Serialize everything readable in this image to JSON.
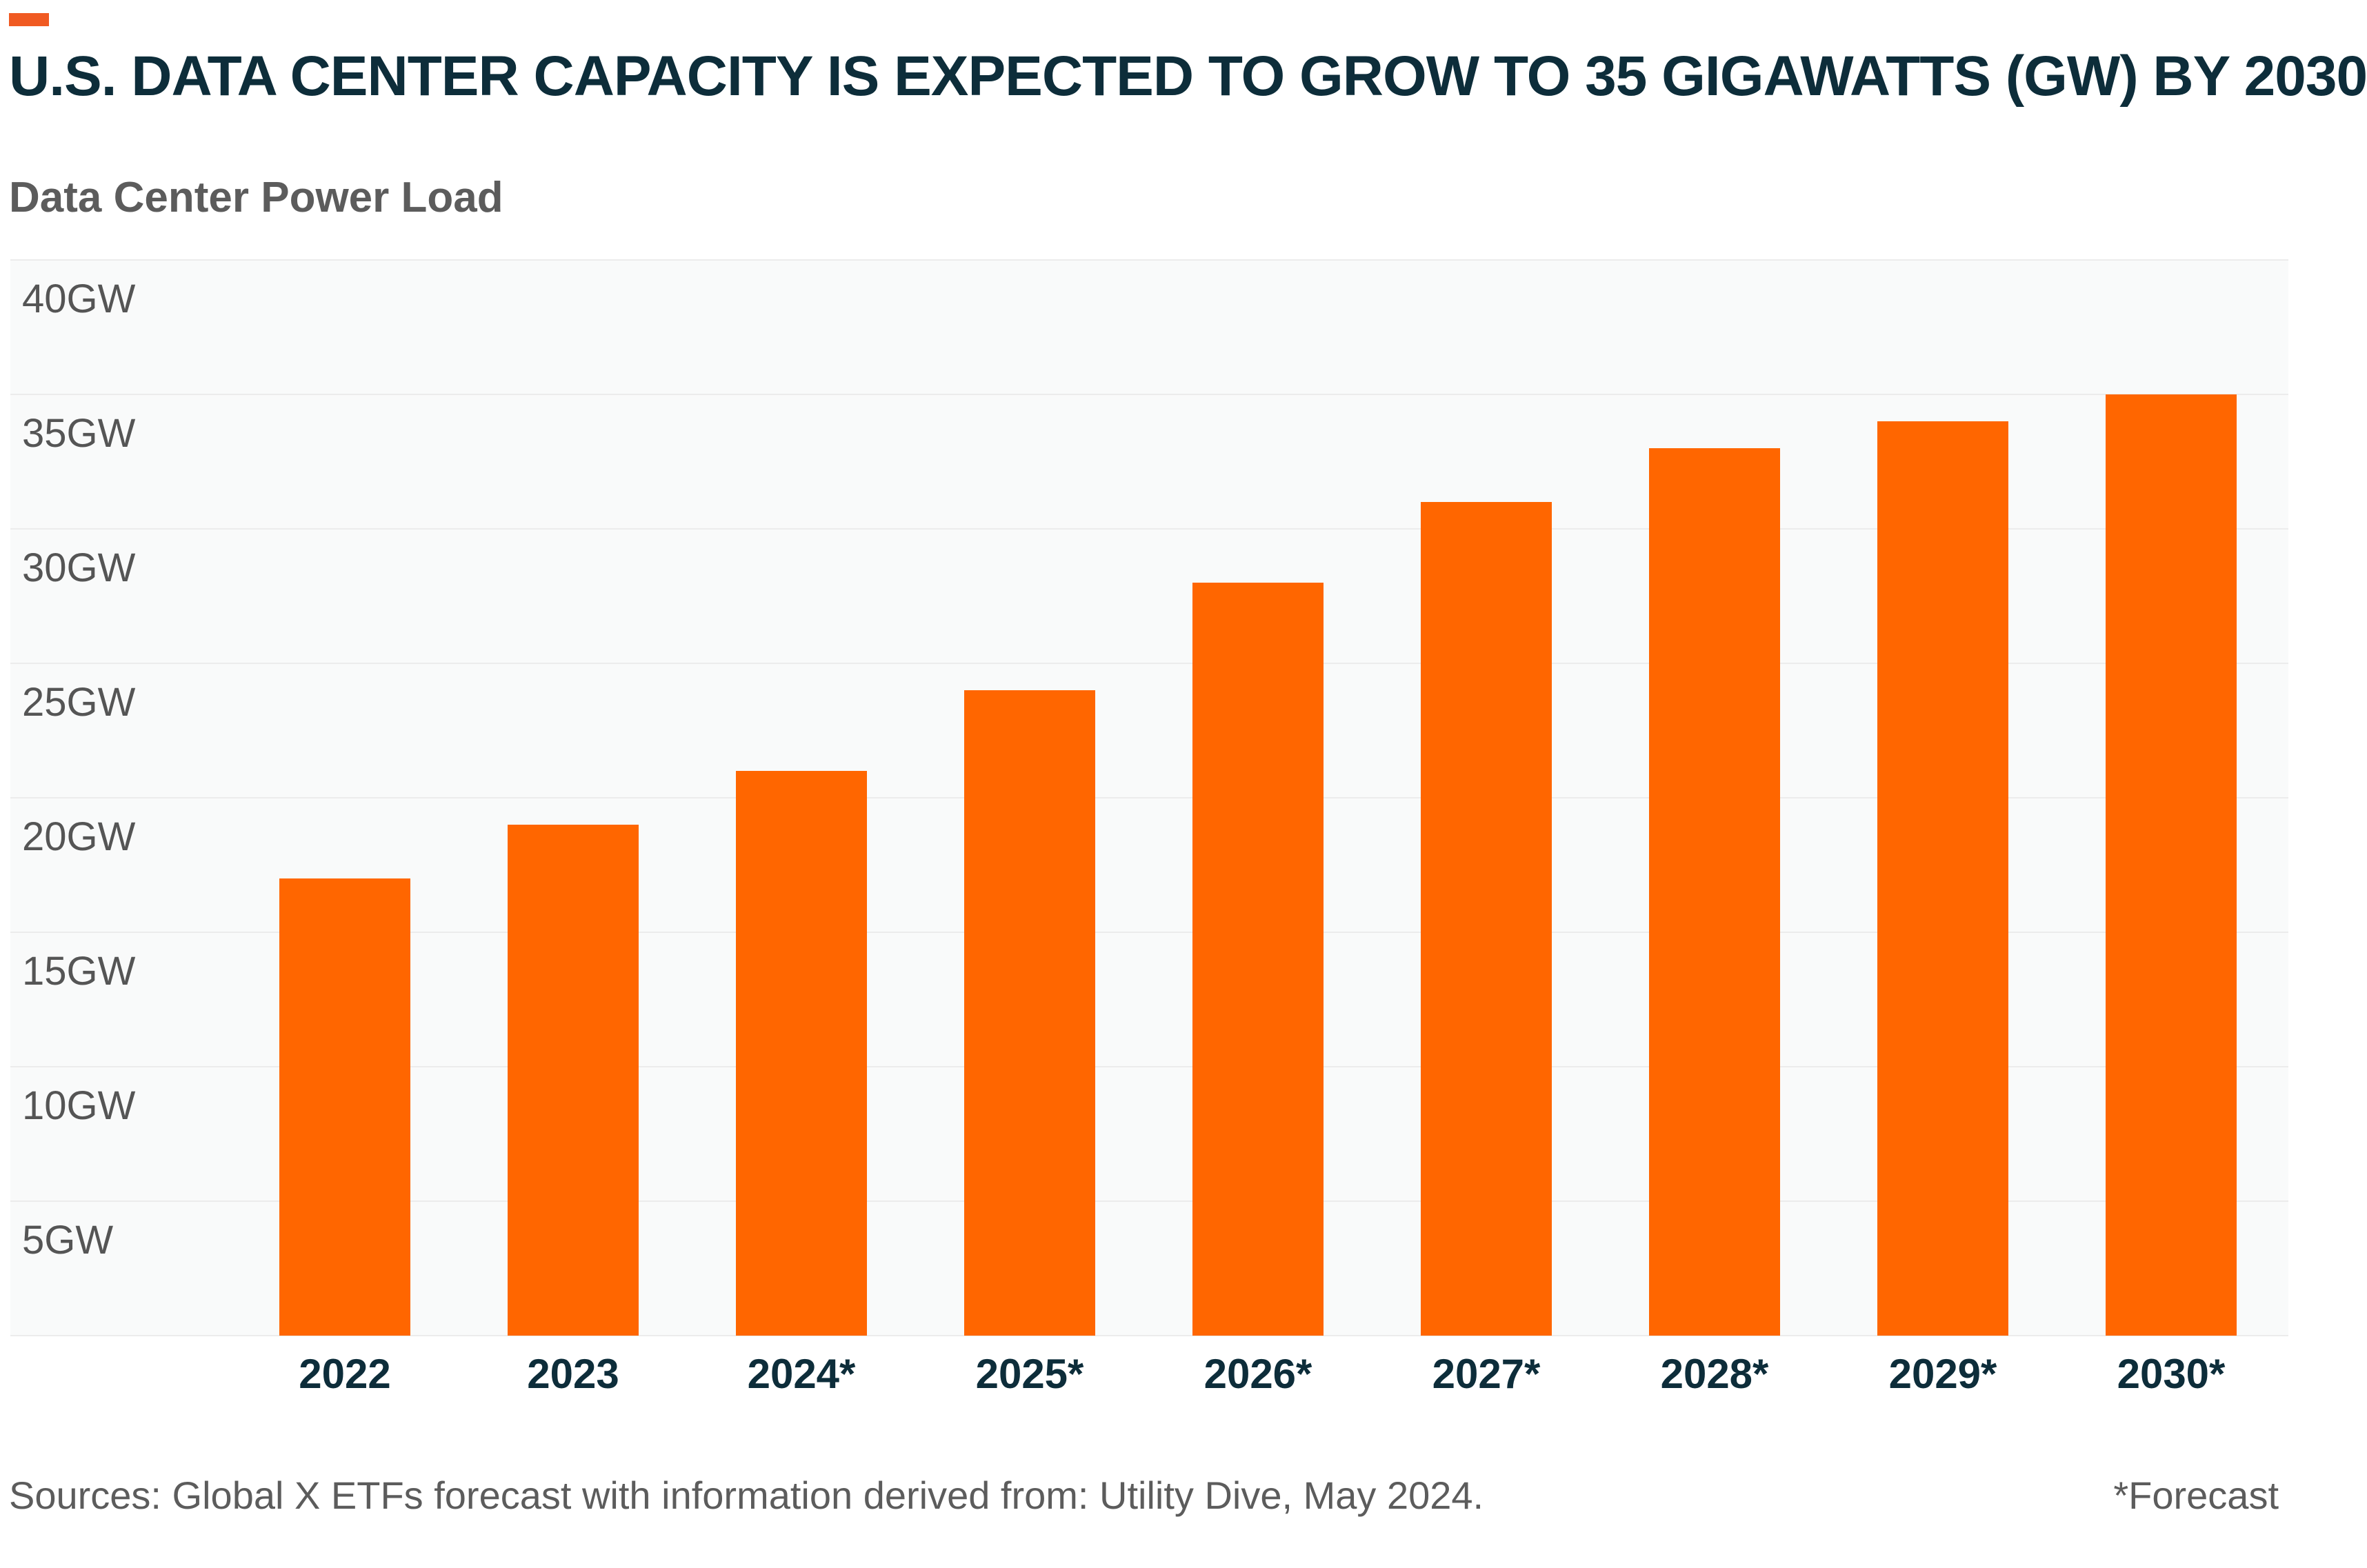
{
  "title": "U.S. DATA CENTER CAPACITY IS EXPECTED TO GROW TO 35 GIGAWATTS (GW) BY 2030",
  "subtitle": "Data Center Power Load",
  "footer": {
    "source": "Sources: Global X ETFs forecast with information derived from: Utility Dive, May 2024.",
    "note": "*Forecast"
  },
  "colors": {
    "accent": "#f05a22",
    "bar": "#ff6600",
    "title": "#0d2d3a",
    "plot_background": "#f9fafa",
    "gridline": "#ececec"
  },
  "chart_data": {
    "type": "bar",
    "categories": [
      "2022",
      "2023",
      "2024*",
      "2025*",
      "2026*",
      "2027*",
      "2028*",
      "2029*",
      "2030*"
    ],
    "values": [
      17,
      19,
      21,
      24,
      28,
      31,
      33,
      34,
      35
    ],
    "ylim": [
      0,
      40
    ],
    "yticks": [
      5,
      10,
      15,
      20,
      25,
      30,
      35,
      40
    ],
    "ytick_labels": [
      "5GW",
      "10GW",
      "15GW",
      "20GW",
      "25GW",
      "30GW",
      "35GW",
      "40GW"
    ],
    "grid": true,
    "legend": "none"
  }
}
